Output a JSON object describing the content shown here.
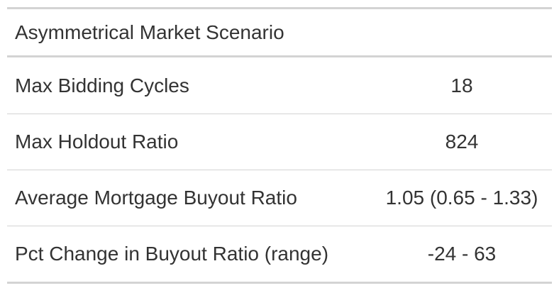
{
  "table": {
    "title": "Asymmetrical Market Scenario",
    "rows": [
      {
        "label": "Max Bidding Cycles",
        "value": "18"
      },
      {
        "label": "Max Holdout Ratio",
        "value": "824"
      },
      {
        "label": "Average Mortgage Buyout Ratio",
        "value": "1.05 (0.65 - 1.33)"
      },
      {
        "label": "Pct Change in Buyout Ratio (range)",
        "value": "-24 - 63"
      }
    ]
  },
  "colors": {
    "text": "#333333",
    "rule": "#d3d3d3",
    "background": "#ffffff"
  }
}
